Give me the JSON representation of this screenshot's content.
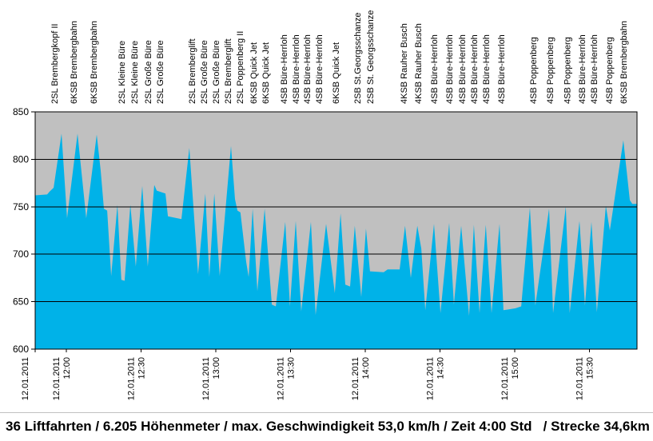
{
  "footer": {
    "summary": "36 Liftfahrten / 6.205 Höhenmeter / max. Geschwindigkeit 53,0 km/h / Zeit 4:00 Std   / Strecke 34,6km"
  },
  "chart_data": {
    "type": "area",
    "title": "",
    "xlabel": "",
    "ylabel": "",
    "x_unit": "minutes since plot start (12.01.2011 ~11:47)",
    "y_unit": "Höhe (m)",
    "x_max": 241.6,
    "ylim": [
      600,
      850
    ],
    "grid": true,
    "legend": false,
    "y_ticks": [
      600,
      650,
      700,
      750,
      800,
      850
    ],
    "x_ticks": [
      {
        "t": 0.0,
        "date": "12.01.2011",
        "time": ""
      },
      {
        "t": 12.5,
        "date": "12.01.2011",
        "time": "12:00"
      },
      {
        "t": 42.5,
        "date": "12.01.2011",
        "time": "12:30"
      },
      {
        "t": 72.5,
        "date": "12.01.2011",
        "time": "13:00"
      },
      {
        "t": 102.5,
        "date": "12.01.2011",
        "time": "13:30"
      },
      {
        "t": 132.5,
        "date": "12.01.2011",
        "time": "14:00"
      },
      {
        "t": 162.5,
        "date": "12.01.2011",
        "time": "14:30"
      },
      {
        "t": 192.5,
        "date": "12.01.2011",
        "time": "15:00"
      },
      {
        "t": 222.5,
        "date": "12.01.2011",
        "time": "15:30"
      }
    ],
    "lift_labels": [
      {
        "t": 7.7,
        "label": "2SL Brembergkopf II"
      },
      {
        "t": 15.4,
        "label": "6KSB Brembergbahn"
      },
      {
        "t": 23.4,
        "label": "6KSB Brembergbahn"
      },
      {
        "t": 34.7,
        "label": "2SL Kleine Büre"
      },
      {
        "t": 39.8,
        "label": "2SL Kleine Büre"
      },
      {
        "t": 45.2,
        "label": "2SL Große Büre"
      },
      {
        "t": 50.1,
        "label": "2SL Große Büre"
      },
      {
        "t": 62.9,
        "label": "2SL Bremberglift"
      },
      {
        "t": 67.7,
        "label": "2SL Große Büre"
      },
      {
        "t": 72.5,
        "label": "2SL Große Büre"
      },
      {
        "t": 77.3,
        "label": "2SL Bremberglift"
      },
      {
        "t": 82.1,
        "label": "2SL Poppenberg II"
      },
      {
        "t": 87.6,
        "label": "6KSB Quick Jet"
      },
      {
        "t": 92.4,
        "label": "6KSB Quick Jet"
      },
      {
        "t": 99.8,
        "label": "4SB Büre-Herrloh"
      },
      {
        "t": 104.6,
        "label": "4SB Büre-Herrloh"
      },
      {
        "t": 109.1,
        "label": "4SB Büre-Herrloh"
      },
      {
        "t": 113.9,
        "label": "4SB Büre-Herrloh"
      },
      {
        "t": 120.6,
        "label": "6KSB Quick Jet"
      },
      {
        "t": 129.3,
        "label": "2SB St.Georgsschanze"
      },
      {
        "t": 134.4,
        "label": "2SB St. Georgsschanze"
      },
      {
        "t": 147.9,
        "label": "4KSB Rauher Busch"
      },
      {
        "t": 153.7,
        "label": "4KSB Rauher Busch"
      },
      {
        "t": 160.1,
        "label": "4SB Büre-Herrloh"
      },
      {
        "t": 166.2,
        "label": "4SB Büre-Herrloh"
      },
      {
        "t": 171.3,
        "label": "4SB Büre-Herrloh"
      },
      {
        "t": 176.1,
        "label": "4SB Büre-Herrloh"
      },
      {
        "t": 180.9,
        "label": "4SB Büre-Herrloh"
      },
      {
        "t": 187.0,
        "label": "4SB Büre-Herrloh"
      },
      {
        "t": 199.9,
        "label": "4SB Poppenberg"
      },
      {
        "t": 206.6,
        "label": "4SB Poppenberg"
      },
      {
        "t": 213.6,
        "label": "4SB Poppenberg"
      },
      {
        "t": 219.4,
        "label": "4SB Büre-Herrloh"
      },
      {
        "t": 224.3,
        "label": "4SB Büre-Herrloh"
      },
      {
        "t": 230.3,
        "label": "4SB Poppenberg"
      },
      {
        "t": 236.1,
        "label": "6KSB Brembergbahn"
      }
    ],
    "profile": [
      [
        0,
        762
      ],
      [
        4.8,
        763
      ],
      [
        5.8,
        766
      ],
      [
        7.4,
        770
      ],
      [
        10.6,
        827
      ],
      [
        12.8,
        738
      ],
      [
        17,
        827
      ],
      [
        20.5,
        738
      ],
      [
        24.7,
        826
      ],
      [
        26.3,
        788
      ],
      [
        27.6,
        748
      ],
      [
        28.9,
        746
      ],
      [
        30.5,
        677
      ],
      [
        33,
        752
      ],
      [
        34.6,
        673
      ],
      [
        35.9,
        672
      ],
      [
        38.2,
        752
      ],
      [
        40.4,
        687
      ],
      [
        43,
        772
      ],
      [
        45.2,
        687
      ],
      [
        47.8,
        773
      ],
      [
        48.8,
        767
      ],
      [
        52.3,
        764
      ],
      [
        53.3,
        740
      ],
      [
        58.7,
        737
      ],
      [
        61.9,
        812
      ],
      [
        65.4,
        679
      ],
      [
        68.3,
        764
      ],
      [
        69.9,
        676
      ],
      [
        71.9,
        764
      ],
      [
        74.1,
        677
      ],
      [
        78.6,
        814
      ],
      [
        80.2,
        758
      ],
      [
        81.2,
        746
      ],
      [
        82.4,
        744
      ],
      [
        84.7,
        692
      ],
      [
        85.7,
        676
      ],
      [
        87.3,
        748
      ],
      [
        89.2,
        661
      ],
      [
        92.1,
        748
      ],
      [
        95,
        647
      ],
      [
        96.6,
        645
      ],
      [
        100.4,
        734
      ],
      [
        102.3,
        645
      ],
      [
        104.6,
        735
      ],
      [
        106.8,
        640
      ],
      [
        110.7,
        734
      ],
      [
        112.6,
        636
      ],
      [
        116.8,
        732
      ],
      [
        120.3,
        659
      ],
      [
        122.6,
        743
      ],
      [
        124.5,
        668
      ],
      [
        126.4,
        666
      ],
      [
        128.3,
        730
      ],
      [
        130.9,
        655
      ],
      [
        132.8,
        727
      ],
      [
        134.4,
        682
      ],
      [
        139.9,
        681
      ],
      [
        141.5,
        684
      ],
      [
        146.3,
        684
      ],
      [
        148.5,
        730
      ],
      [
        150.8,
        675
      ],
      [
        153.4,
        730
      ],
      [
        155,
        706
      ],
      [
        156.6,
        641
      ],
      [
        160.1,
        732
      ],
      [
        162.7,
        638
      ],
      [
        166.2,
        733
      ],
      [
        168.1,
        647
      ],
      [
        171,
        730
      ],
      [
        174.2,
        635
      ],
      [
        176.1,
        731
      ],
      [
        178.4,
        638
      ],
      [
        180.9,
        731
      ],
      [
        183.2,
        638
      ],
      [
        186.4,
        732
      ],
      [
        188,
        641
      ],
      [
        192.8,
        643
      ],
      [
        195.1,
        645
      ],
      [
        198.6,
        749
      ],
      [
        200.8,
        646
      ],
      [
        206.3,
        748
      ],
      [
        207.9,
        638
      ],
      [
        213,
        750
      ],
      [
        214.6,
        638
      ],
      [
        218.5,
        735
      ],
      [
        220.7,
        646
      ],
      [
        223.3,
        734
      ],
      [
        225.5,
        639
      ],
      [
        229.1,
        751
      ],
      [
        230.7,
        725
      ],
      [
        236.1,
        820
      ],
      [
        238.7,
        757
      ],
      [
        239.7,
        753
      ],
      [
        241.6,
        753
      ]
    ],
    "colors": {
      "area": "#00B2E8",
      "plot_background": "#C0C0C0",
      "gridline": "#000000",
      "text": "#000000",
      "page_background": "#FFFFFF"
    }
  }
}
